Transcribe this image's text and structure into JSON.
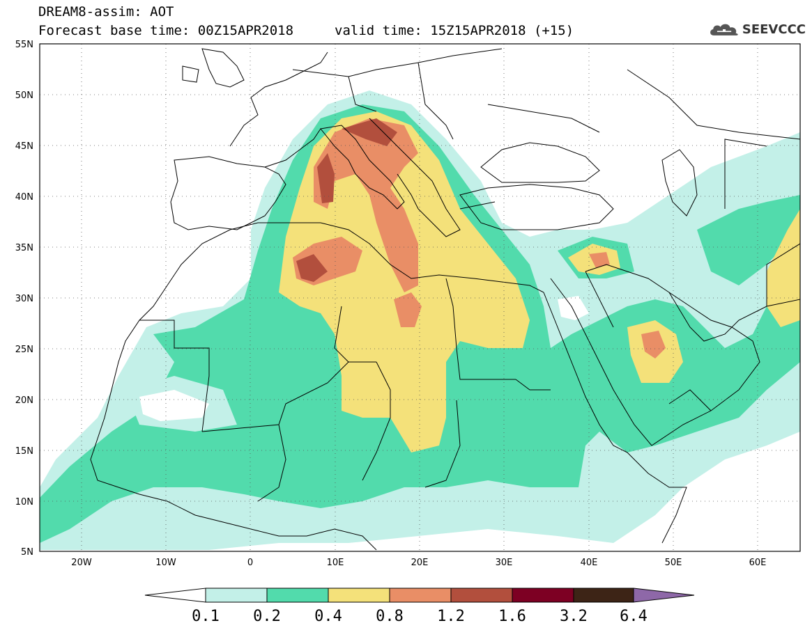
{
  "header": {
    "title": "DREAM8-assim: AOT",
    "base_time": "Forecast base time: 00Z15APR2018",
    "valid_time": "valid time: 15Z15APR2018 (+15)",
    "logo_text": "SEEVCCC"
  },
  "map": {
    "variable": "AOT",
    "projection": "lat-lon",
    "lon_range": [
      -25,
      65
    ],
    "lat_range": [
      5,
      55
    ],
    "lat_ticks": [
      "55N",
      "50N",
      "45N",
      "40N",
      "35N",
      "30N",
      "25N",
      "20N",
      "15N",
      "10N",
      "5N"
    ],
    "lon_ticks": [
      "20W",
      "10W",
      "0",
      "10E",
      "20E",
      "30E",
      "40E",
      "50E",
      "60E"
    ],
    "grid": "dotted"
  },
  "colorbar": {
    "levels": [
      "0.1",
      "0.2",
      "0.4",
      "0.8",
      "1.2",
      "1.6",
      "3.2",
      "6.4"
    ],
    "colors": [
      "#ffffff",
      "#c3f0e8",
      "#52dbac",
      "#f4e17a",
      "#e98e66",
      "#b24f3d",
      "#7d0023",
      "#3d2416",
      "#8e68a8"
    ]
  }
}
